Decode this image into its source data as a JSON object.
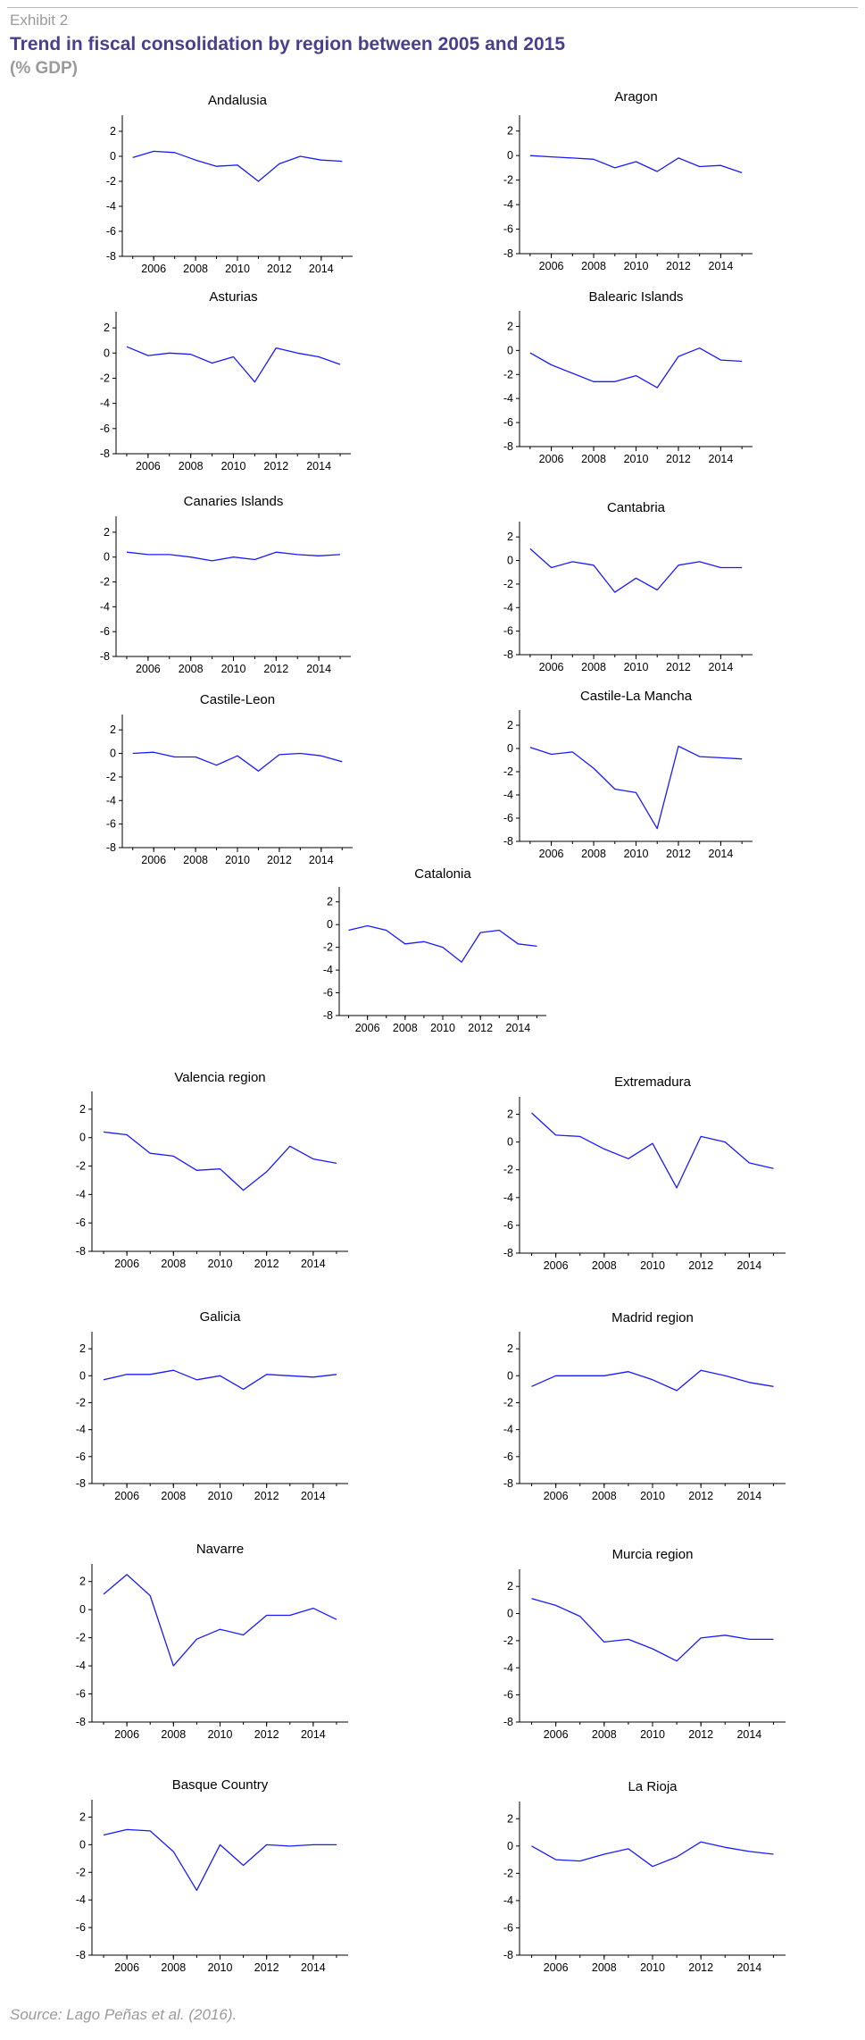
{
  "header": {
    "exhibit": "Exhibit 2",
    "title": "Trend in fiscal consolidation by region between 2005 and 2015",
    "subtitle": "(% GDP)"
  },
  "footer": {
    "source": "Source: Lago Peñas et al. (2016)."
  },
  "chart_data": [
    {
      "type": "line",
      "title": "Andalusia",
      "x": [
        2005,
        2006,
        2007,
        2008,
        2009,
        2010,
        2011,
        2012,
        2013,
        2014,
        2015
      ],
      "y": [
        -0.1,
        0.4,
        0.3,
        -0.3,
        -0.8,
        -0.7,
        -2.0,
        -0.6,
        0.0,
        -0.3,
        -0.4
      ],
      "xticks": [
        2006,
        2008,
        2010,
        2012,
        2014
      ],
      "yticks": [
        2,
        0,
        -2,
        -4,
        -6,
        -8
      ],
      "ylim": [
        -8,
        3
      ],
      "xlim": [
        2004.5,
        2015.5
      ],
      "line_color": "#1a1aff"
    },
    {
      "type": "line",
      "title": "Aragon",
      "x": [
        2005,
        2006,
        2007,
        2008,
        2009,
        2010,
        2011,
        2012,
        2013,
        2014,
        2015
      ],
      "y": [
        0.0,
        -0.1,
        -0.2,
        -0.3,
        -1.0,
        -0.5,
        -1.3,
        -0.2,
        -0.9,
        -0.8,
        -1.4
      ],
      "xticks": [
        2006,
        2008,
        2010,
        2012,
        2014
      ],
      "yticks": [
        2,
        0,
        -2,
        -4,
        -6,
        -8
      ],
      "ylim": [
        -8,
        3
      ],
      "xlim": [
        2004.5,
        2015.5
      ],
      "line_color": "#1a1aff"
    },
    {
      "type": "line",
      "title": "Asturias",
      "x": [
        2005,
        2006,
        2007,
        2008,
        2009,
        2010,
        2011,
        2012,
        2013,
        2014,
        2015
      ],
      "y": [
        0.5,
        -0.2,
        0.0,
        -0.1,
        -0.8,
        -0.3,
        -2.3,
        0.4,
        0.0,
        -0.3,
        -0.9
      ],
      "xticks": [
        2006,
        2008,
        2010,
        2012,
        2014
      ],
      "yticks": [
        2,
        0,
        -2,
        -4,
        -6,
        -8
      ],
      "ylim": [
        -8,
        3
      ],
      "xlim": [
        2004.5,
        2015.5
      ],
      "line_color": "#1a1aff"
    },
    {
      "type": "line",
      "title": "Balearic Islands",
      "x": [
        2005,
        2006,
        2007,
        2008,
        2009,
        2010,
        2011,
        2012,
        2013,
        2014,
        2015
      ],
      "y": [
        -0.2,
        -1.2,
        -1.9,
        -2.6,
        -2.6,
        -2.1,
        -3.1,
        -0.5,
        0.2,
        -0.8,
        -0.9
      ],
      "xticks": [
        2006,
        2008,
        2010,
        2012,
        2014
      ],
      "yticks": [
        2,
        0,
        -2,
        -4,
        -6,
        -8
      ],
      "ylim": [
        -8,
        3
      ],
      "xlim": [
        2004.5,
        2015.5
      ],
      "line_color": "#1a1aff"
    },
    {
      "type": "line",
      "title": "Canaries Islands",
      "x": [
        2005,
        2006,
        2007,
        2008,
        2009,
        2010,
        2011,
        2012,
        2013,
        2014,
        2015
      ],
      "y": [
        0.4,
        0.2,
        0.2,
        0.0,
        -0.3,
        0.0,
        -0.2,
        0.4,
        0.2,
        0.1,
        0.2
      ],
      "xticks": [
        2006,
        2008,
        2010,
        2012,
        2014
      ],
      "yticks": [
        2,
        0,
        -2,
        -4,
        -6,
        -8
      ],
      "ylim": [
        -8,
        3
      ],
      "xlim": [
        2004.5,
        2015.5
      ],
      "line_color": "#1a1aff"
    },
    {
      "type": "line",
      "title": "Cantabria",
      "x": [
        2005,
        2006,
        2007,
        2008,
        2009,
        2010,
        2011,
        2012,
        2013,
        2014,
        2015
      ],
      "y": [
        1.0,
        -0.6,
        -0.1,
        -0.4,
        -2.7,
        -1.5,
        -2.5,
        -0.4,
        -0.1,
        -0.6,
        -0.6
      ],
      "xticks": [
        2006,
        2008,
        2010,
        2012,
        2014
      ],
      "yticks": [
        2,
        0,
        -2,
        -4,
        -6,
        -8
      ],
      "ylim": [
        -8,
        3
      ],
      "xlim": [
        2004.5,
        2015.5
      ],
      "line_color": "#1a1aff"
    },
    {
      "type": "line",
      "title": "Castile-Leon",
      "x": [
        2005,
        2006,
        2007,
        2008,
        2009,
        2010,
        2011,
        2012,
        2013,
        2014,
        2015
      ],
      "y": [
        0.0,
        0.1,
        -0.3,
        -0.3,
        -1.0,
        -0.2,
        -1.5,
        -0.1,
        0.0,
        -0.2,
        -0.7
      ],
      "xticks": [
        2006,
        2008,
        2010,
        2012,
        2014
      ],
      "yticks": [
        2,
        0,
        -2,
        -4,
        -6,
        -8
      ],
      "ylim": [
        -8,
        3
      ],
      "xlim": [
        2004.5,
        2015.5
      ],
      "line_color": "#1a1aff"
    },
    {
      "type": "line",
      "title": "Castile-La Mancha",
      "x": [
        2005,
        2006,
        2007,
        2008,
        2009,
        2010,
        2011,
        2012,
        2013,
        2014,
        2015
      ],
      "y": [
        0.1,
        -0.5,
        -0.3,
        -1.7,
        -3.5,
        -3.8,
        -6.9,
        0.2,
        -0.7,
        -0.8,
        -0.9
      ],
      "xticks": [
        2006,
        2008,
        2010,
        2012,
        2014
      ],
      "yticks": [
        2,
        0,
        -2,
        -4,
        -6,
        -8
      ],
      "ylim": [
        -8,
        3
      ],
      "xlim": [
        2004.5,
        2015.5
      ],
      "line_color": "#1a1aff"
    },
    {
      "type": "line",
      "title": "Catalonia",
      "x": [
        2005,
        2006,
        2007,
        2008,
        2009,
        2010,
        2011,
        2012,
        2013,
        2014,
        2015
      ],
      "y": [
        -0.5,
        -0.1,
        -0.5,
        -1.7,
        -1.5,
        -2.0,
        -3.3,
        -0.7,
        -0.5,
        -1.7,
        -1.9
      ],
      "xticks": [
        2006,
        2008,
        2010,
        2012,
        2014
      ],
      "yticks": [
        2,
        0,
        -2,
        -4,
        -6,
        -8
      ],
      "ylim": [
        -8,
        3
      ],
      "xlim": [
        2004.5,
        2015.5
      ],
      "line_color": "#1a1aff"
    },
    {
      "type": "line",
      "title": "Valencia region",
      "x": [
        2005,
        2006,
        2007,
        2008,
        2009,
        2010,
        2011,
        2012,
        2013,
        2014,
        2015
      ],
      "y": [
        0.4,
        0.2,
        -1.1,
        -1.3,
        -2.3,
        -2.2,
        -3.7,
        -2.4,
        -0.6,
        -1.5,
        -1.8
      ],
      "xticks": [
        2006,
        2008,
        2010,
        2012,
        2014
      ],
      "yticks": [
        2,
        0,
        -2,
        -4,
        -6,
        -8
      ],
      "ylim": [
        -8,
        3
      ],
      "xlim": [
        2004.5,
        2015.5
      ],
      "line_color": "#1a1aff"
    },
    {
      "type": "line",
      "title": "Extremadura",
      "x": [
        2005,
        2006,
        2007,
        2008,
        2009,
        2010,
        2011,
        2012,
        2013,
        2014,
        2015
      ],
      "y": [
        2.1,
        0.5,
        0.4,
        -0.5,
        -1.2,
        -0.1,
        -3.3,
        0.4,
        0.0,
        -1.5,
        -1.9
      ],
      "xticks": [
        2006,
        2008,
        2010,
        2012,
        2014
      ],
      "yticks": [
        2,
        0,
        -2,
        -4,
        -6,
        -8
      ],
      "ylim": [
        -8,
        3
      ],
      "xlim": [
        2004.5,
        2015.5
      ],
      "line_color": "#1a1aff"
    },
    {
      "type": "line",
      "title": "Galicia",
      "x": [
        2005,
        2006,
        2007,
        2008,
        2009,
        2010,
        2011,
        2012,
        2013,
        2014,
        2015
      ],
      "y": [
        -0.3,
        0.1,
        0.1,
        0.4,
        -0.3,
        0.0,
        -1.0,
        0.1,
        0.0,
        -0.1,
        0.1
      ],
      "xticks": [
        2006,
        2008,
        2010,
        2012,
        2014
      ],
      "yticks": [
        2,
        0,
        -2,
        -4,
        -6,
        -8
      ],
      "ylim": [
        -8,
        3
      ],
      "xlim": [
        2004.5,
        2015.5
      ],
      "line_color": "#1a1aff"
    },
    {
      "type": "line",
      "title": "Madrid region",
      "x": [
        2005,
        2006,
        2007,
        2008,
        2009,
        2010,
        2011,
        2012,
        2013,
        2014,
        2015
      ],
      "y": [
        -0.8,
        0.0,
        0.0,
        0.0,
        0.3,
        -0.3,
        -1.1,
        0.4,
        0.0,
        -0.5,
        -0.8
      ],
      "xticks": [
        2006,
        2008,
        2010,
        2012,
        2014
      ],
      "yticks": [
        2,
        0,
        -2,
        -4,
        -6,
        -8
      ],
      "ylim": [
        -8,
        3
      ],
      "xlim": [
        2004.5,
        2015.5
      ],
      "line_color": "#1a1aff"
    },
    {
      "type": "line",
      "title": "Navarre",
      "x": [
        2005,
        2006,
        2007,
        2008,
        2009,
        2010,
        2011,
        2012,
        2013,
        2014,
        2015
      ],
      "y": [
        1.1,
        2.5,
        1.0,
        -4.0,
        -2.1,
        -1.4,
        -1.8,
        -0.4,
        -0.4,
        0.1,
        -0.7
      ],
      "xticks": [
        2006,
        2008,
        2010,
        2012,
        2014
      ],
      "yticks": [
        2,
        0,
        -2,
        -4,
        -6,
        -8
      ],
      "ylim": [
        -8,
        3
      ],
      "xlim": [
        2004.5,
        2015.5
      ],
      "line_color": "#1a1aff"
    },
    {
      "type": "line",
      "title": "Murcia region",
      "x": [
        2005,
        2006,
        2007,
        2008,
        2009,
        2010,
        2011,
        2012,
        2013,
        2014,
        2015
      ],
      "y": [
        1.1,
        0.6,
        -0.2,
        -2.1,
        -1.9,
        -2.6,
        -3.5,
        -1.8,
        -1.6,
        -1.9,
        -1.9
      ],
      "xticks": [
        2006,
        2008,
        2010,
        2012,
        2014
      ],
      "yticks": [
        2,
        0,
        -2,
        -4,
        -6,
        -8
      ],
      "ylim": [
        -8,
        3
      ],
      "xlim": [
        2004.5,
        2015.5
      ],
      "line_color": "#1a1aff"
    },
    {
      "type": "line",
      "title": "Basque Country",
      "x": [
        2005,
        2006,
        2007,
        2008,
        2009,
        2010,
        2011,
        2012,
        2013,
        2014,
        2015
      ],
      "y": [
        0.7,
        1.1,
        1.0,
        -0.5,
        -3.3,
        0.0,
        -1.5,
        0.0,
        -0.1,
        0.0,
        0.0
      ],
      "xticks": [
        2006,
        2008,
        2010,
        2012,
        2014
      ],
      "yticks": [
        2,
        0,
        -2,
        -4,
        -6,
        -8
      ],
      "ylim": [
        -8,
        3
      ],
      "xlim": [
        2004.5,
        2015.5
      ],
      "line_color": "#1a1aff"
    },
    {
      "type": "line",
      "title": "La Rioja",
      "x": [
        2005,
        2006,
        2007,
        2008,
        2009,
        2010,
        2011,
        2012,
        2013,
        2014,
        2015
      ],
      "y": [
        0.0,
        -1.0,
        -1.1,
        -0.6,
        -0.2,
        -1.5,
        -0.8,
        0.3,
        -0.1,
        -0.4,
        -0.6
      ],
      "xticks": [
        2006,
        2008,
        2010,
        2012,
        2014
      ],
      "yticks": [
        2,
        0,
        -2,
        -4,
        -6,
        -8
      ],
      "ylim": [
        -8,
        3
      ],
      "xlim": [
        2004.5,
        2015.5
      ],
      "line_color": "#1a1aff"
    }
  ]
}
